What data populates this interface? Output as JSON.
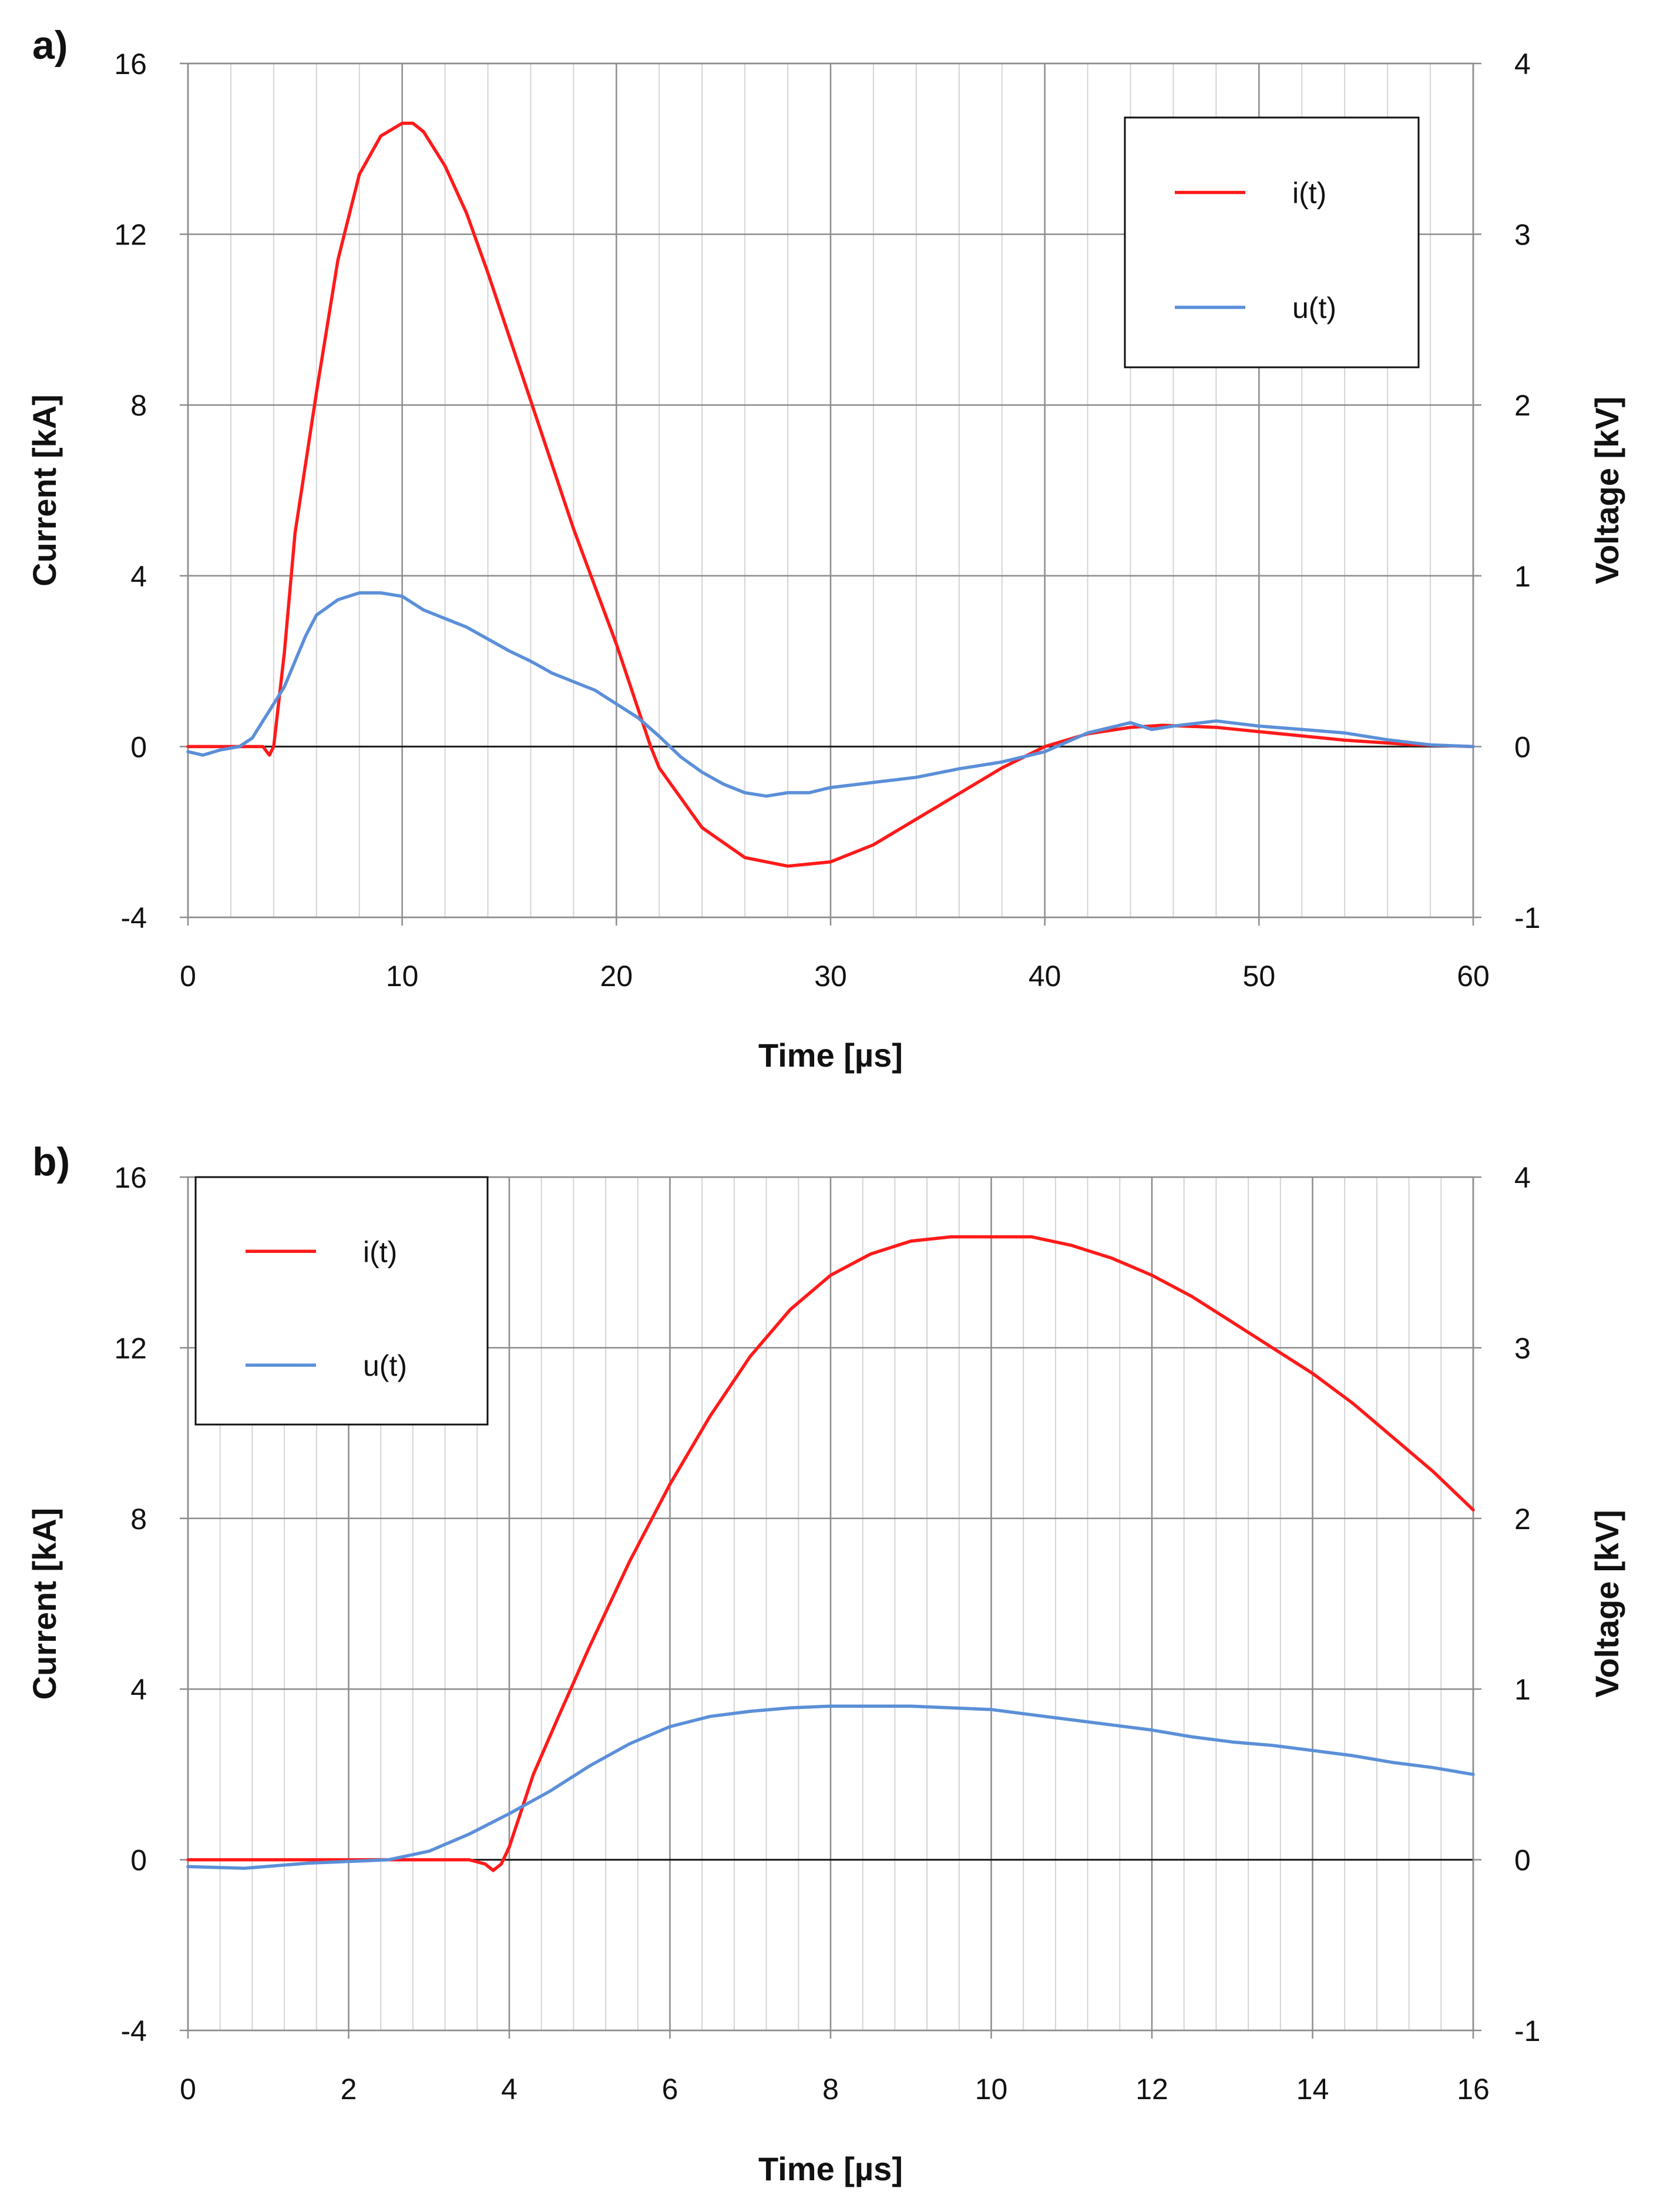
{
  "colors": {
    "current": "#ff1a1a",
    "voltage": "#5b8fd8",
    "major_grid": "#8c8c8c",
    "minor_grid": "#d4d4d4",
    "zero_line": "#1a1a1a",
    "frame": "#8c8c8c"
  },
  "chart_data": [
    {
      "panel_label": "a)",
      "type": "line",
      "xlabel": "Time [µs]",
      "ylabel_left": "Current [kA]",
      "ylabel_right": "Voltage [kV]",
      "xlim": [
        0,
        60
      ],
      "ylim_left": [
        -4,
        16
      ],
      "ylim_right": [
        -1,
        4
      ],
      "x_ticks": [
        0,
        10,
        20,
        30,
        40,
        50,
        60
      ],
      "x_minor_step": 2,
      "y_left_ticks": [
        -4,
        0,
        4,
        8,
        12,
        16
      ],
      "y_right_ticks": [
        -1,
        0,
        1,
        2,
        3,
        4
      ],
      "legend_position": "top-right",
      "legend": [
        "i(t)",
        "u(t)"
      ],
      "series": [
        {
          "name": "i(t)",
          "axis": "left",
          "unit": "kA",
          "x": [
            0,
            1,
            2,
            3,
            3.5,
            3.8,
            4,
            4.5,
            5,
            6,
            7,
            8,
            9,
            10,
            10.5,
            11,
            12,
            13,
            14,
            15,
            16,
            18,
            20,
            21.6,
            22,
            24,
            26,
            28,
            30,
            32,
            34,
            36,
            38,
            40,
            42,
            44,
            45.5,
            48,
            50,
            54,
            57,
            60
          ],
          "values": [
            0,
            0,
            0,
            0,
            0,
            -0.2,
            0,
            2.2,
            5,
            8.3,
            11.4,
            13.4,
            14.3,
            14.6,
            14.6,
            14.4,
            13.6,
            12.5,
            11.1,
            9.6,
            8.1,
            5.1,
            2.4,
            0,
            -0.5,
            -1.9,
            -2.6,
            -2.8,
            -2.7,
            -2.3,
            -1.7,
            -1.1,
            -0.5,
            0,
            0.3,
            0.45,
            0.5,
            0.45,
            0.35,
            0.15,
            0.05,
            0
          ]
        },
        {
          "name": "u(t)",
          "axis": "right",
          "unit": "kV",
          "x": [
            0,
            0.7,
            1.5,
            2.4,
            3,
            3.5,
            4,
            4.5,
            5,
            5.5,
            6,
            7,
            8,
            9,
            10,
            11,
            12,
            13,
            14,
            15,
            16,
            17,
            18,
            19,
            20,
            21,
            22,
            23,
            24,
            25,
            26,
            27,
            28,
            29,
            30,
            32,
            34,
            36,
            38,
            40,
            42,
            44,
            45,
            46,
            48,
            50,
            52,
            54,
            56,
            58,
            60
          ],
          "values": [
            -0.03,
            -0.05,
            -0.02,
            0,
            0.05,
            0.15,
            0.25,
            0.35,
            0.5,
            0.65,
            0.77,
            0.86,
            0.9,
            0.9,
            0.88,
            0.8,
            0.75,
            0.7,
            0.63,
            0.56,
            0.5,
            0.43,
            0.38,
            0.33,
            0.25,
            0.17,
            0.06,
            -0.06,
            -0.15,
            -0.22,
            -0.27,
            -0.29,
            -0.27,
            -0.27,
            -0.24,
            -0.21,
            -0.18,
            -0.13,
            -0.09,
            -0.03,
            0.08,
            0.14,
            0.1,
            0.12,
            0.15,
            0.12,
            0.1,
            0.08,
            0.04,
            0.01,
            0
          ]
        }
      ]
    },
    {
      "panel_label": "b)",
      "type": "line",
      "xlabel": "Time [µs]",
      "ylabel_left": "Current [kA]",
      "ylabel_right": "Voltage [kV]",
      "xlim": [
        0,
        16
      ],
      "ylim_left": [
        -4,
        16
      ],
      "ylim_right": [
        -1,
        4
      ],
      "x_ticks": [
        0,
        2,
        4,
        6,
        8,
        10,
        12,
        14,
        16
      ],
      "x_minor_step": 0.4,
      "y_left_ticks": [
        -4,
        0,
        4,
        8,
        12,
        16
      ],
      "y_right_ticks": [
        -1,
        0,
        1,
        2,
        3,
        4
      ],
      "legend_position": "top-left",
      "legend": [
        "i(t)",
        "u(t)"
      ],
      "series": [
        {
          "name": "i(t)",
          "axis": "left",
          "unit": "kA",
          "x": [
            0,
            1,
            2,
            3,
            3.5,
            3.7,
            3.8,
            3.9,
            4,
            4.3,
            4.6,
            5,
            5.5,
            6,
            6.5,
            7,
            7.5,
            8,
            8.5,
            9,
            9.5,
            10,
            10.5,
            11,
            11.5,
            12,
            12.5,
            13,
            13.5,
            14,
            14.5,
            15,
            15.5,
            16
          ],
          "values": [
            0,
            0,
            0,
            0,
            0,
            -0.1,
            -0.25,
            -0.1,
            0.3,
            2,
            3.3,
            5,
            7,
            8.8,
            10.4,
            11.8,
            12.9,
            13.7,
            14.2,
            14.5,
            14.6,
            14.6,
            14.6,
            14.4,
            14.1,
            13.7,
            13.2,
            12.6,
            12,
            11.4,
            10.7,
            9.9,
            9.1,
            8.2
          ]
        },
        {
          "name": "u(t)",
          "axis": "right",
          "unit": "kV",
          "x": [
            0,
            0.7,
            1.5,
            2,
            2.5,
            3,
            3.5,
            4,
            4.5,
            5,
            5.5,
            6,
            6.5,
            7,
            7.5,
            8,
            8.5,
            9,
            9.5,
            10,
            10.5,
            11,
            11.5,
            12,
            12.5,
            13,
            13.5,
            14,
            14.5,
            15,
            15.5,
            16
          ],
          "values": [
            -0.04,
            -0.05,
            -0.02,
            -0.01,
            0,
            0.05,
            0.15,
            0.27,
            0.4,
            0.55,
            0.68,
            0.78,
            0.84,
            0.87,
            0.89,
            0.9,
            0.9,
            0.9,
            0.89,
            0.88,
            0.85,
            0.82,
            0.79,
            0.76,
            0.72,
            0.69,
            0.67,
            0.64,
            0.61,
            0.57,
            0.54,
            0.5
          ]
        }
      ]
    }
  ]
}
